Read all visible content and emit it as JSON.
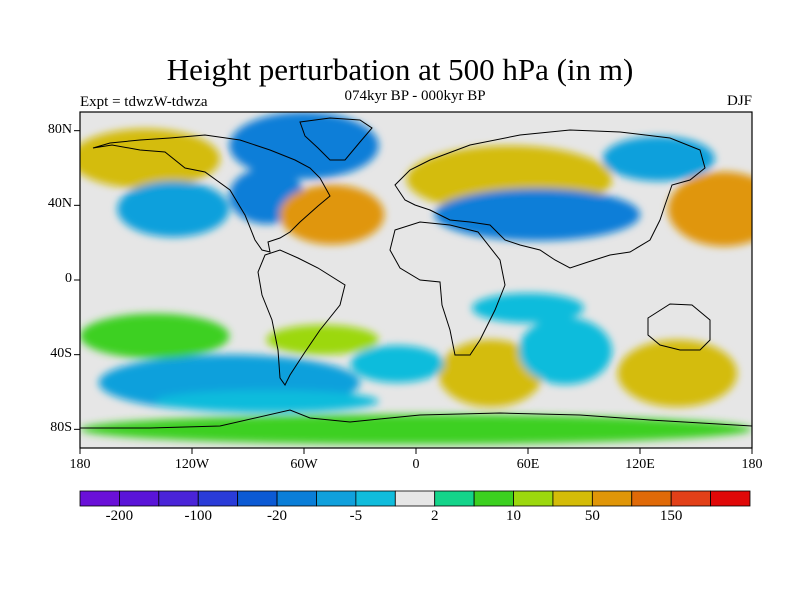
{
  "title": "Height perturbation at 500 hPa (in m)",
  "subtitle": "074kyr BP - 000kyr BP",
  "experiment": "Expt = tdwzW-tdwza",
  "season": "DJF",
  "y_axis": {
    "ticks": [
      {
        "label": "80N",
        "lat": 80
      },
      {
        "label": "40N",
        "lat": 40
      },
      {
        "label": "0",
        "lat": 0
      },
      {
        "label": "40S",
        "lat": -40
      },
      {
        "label": "80S",
        "lat": -80
      }
    ]
  },
  "x_axis": {
    "ticks": [
      {
        "label": "180",
        "lon": -180
      },
      {
        "label": "120W",
        "lon": -120
      },
      {
        "label": "60W",
        "lon": -60
      },
      {
        "label": "0",
        "lon": 0
      },
      {
        "label": "60E",
        "lon": 60
      },
      {
        "label": "120E",
        "lon": 120
      },
      {
        "label": "180",
        "lon": 180
      }
    ]
  },
  "colorbar": {
    "colors": [
      "#6a10d8",
      "#5a14d8",
      "#4a24d8",
      "#2a3cd8",
      "#0c5ad4",
      "#0a7ed8",
      "#10a0dc",
      "#10bcdc",
      "#e6e6e6",
      "#14d48a",
      "#3cd020",
      "#9cd80e",
      "#d4bc08",
      "#e09608",
      "#e06a08",
      "#e24018",
      "#e00808"
    ],
    "labels": [
      {
        "text": "-200",
        "slot": 1
      },
      {
        "text": "-100",
        "slot": 3
      },
      {
        "text": "-20",
        "slot": 5
      },
      {
        "text": "-5",
        "slot": 7
      },
      {
        "text": "2",
        "slot": 9
      },
      {
        "text": "10",
        "slot": 11
      },
      {
        "text": "50",
        "slot": 13
      },
      {
        "text": "150",
        "slot": 15
      }
    ]
  },
  "map_fields": [
    {
      "lon": -145,
      "lat": 65,
      "rlon": 40,
      "rlat": 16,
      "level": 12
    },
    {
      "lon": -60,
      "lat": 72,
      "rlon": 40,
      "rlat": 18,
      "level": 5
    },
    {
      "lon": -80,
      "lat": 45,
      "rlon": 20,
      "rlat": 15,
      "level": 5
    },
    {
      "lon": -45,
      "lat": 35,
      "rlon": 28,
      "rlat": 16,
      "level": 13
    },
    {
      "lon": -130,
      "lat": 38,
      "rlon": 30,
      "rlat": 15,
      "level": 6
    },
    {
      "lon": 50,
      "lat": 54,
      "rlon": 55,
      "rlat": 18,
      "level": 12
    },
    {
      "lon": 65,
      "lat": 35,
      "rlon": 55,
      "rlat": 14,
      "level": 5
    },
    {
      "lon": 165,
      "lat": 38,
      "rlon": 30,
      "rlat": 20,
      "level": 13
    },
    {
      "lon": 130,
      "lat": 65,
      "rlon": 30,
      "rlat": 12,
      "level": 6
    },
    {
      "lon": -100,
      "lat": -55,
      "rlon": 70,
      "rlat": 15,
      "level": 6
    },
    {
      "lon": -140,
      "lat": -30,
      "rlon": 40,
      "rlat": 12,
      "level": 10
    },
    {
      "lon": -50,
      "lat": -32,
      "rlon": 30,
      "rlat": 8,
      "level": 11
    },
    {
      "lon": 40,
      "lat": -50,
      "rlon": 28,
      "rlat": 18,
      "level": 12
    },
    {
      "lon": 140,
      "lat": -50,
      "rlon": 32,
      "rlat": 18,
      "level": 12
    },
    {
      "lon": 80,
      "lat": -38,
      "rlon": 25,
      "rlat": 18,
      "level": 7
    },
    {
      "lon": 60,
      "lat": -15,
      "rlon": 30,
      "rlat": 8,
      "level": 7
    },
    {
      "lon": -10,
      "lat": -45,
      "rlon": 25,
      "rlat": 10,
      "level": 7
    },
    {
      "lon": 0,
      "lat": -80,
      "rlon": 180,
      "rlat": 8,
      "level": 10
    },
    {
      "lon": -80,
      "lat": -65,
      "rlon": 60,
      "rlat": 6,
      "level": 7
    }
  ]
}
